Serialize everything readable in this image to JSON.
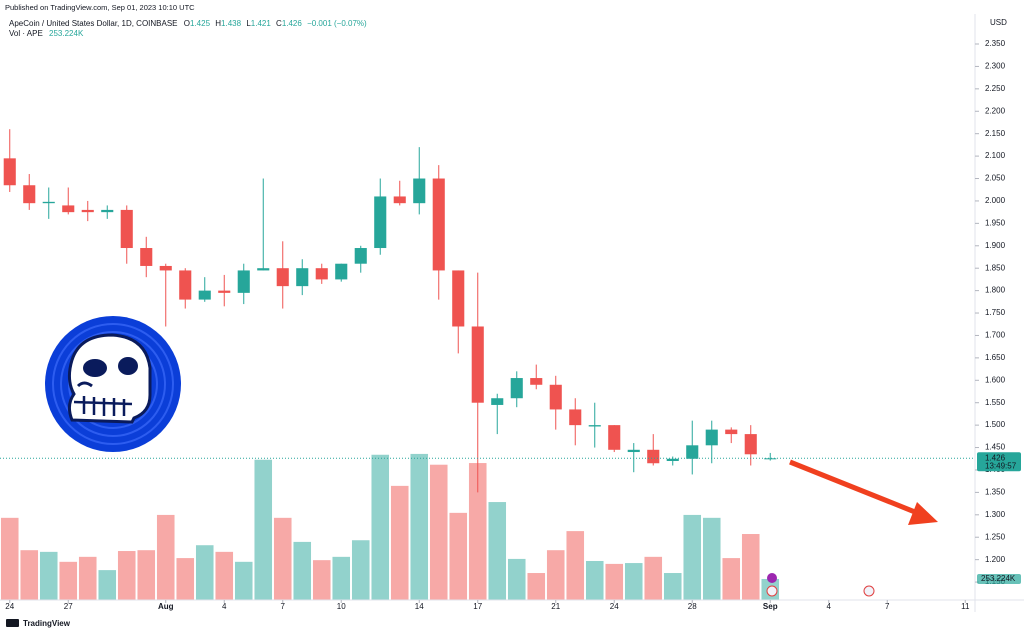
{
  "header": {
    "published": "Published on TradingView.com, Sep 01, 2023 10:10 UTC"
  },
  "chart_data": {
    "type": "candlestick",
    "title": "ApeCoin / United States Dollar, 1D, COINBASE",
    "ohlc_prefixes": [
      "O",
      "H",
      "L",
      "C"
    ],
    "change_label": "−0.001 (−0.07%)",
    "volume_title": "Vol · APE",
    "currency_label": "USD",
    "countdown": "13:49:57",
    "up_color": "#26a69a",
    "down_color": "#ef5350",
    "xlim": [
      -0.5,
      49.5
    ],
    "xticks": [
      {
        "value": 0,
        "label": "24"
      },
      {
        "value": 3,
        "label": "27"
      },
      {
        "value": 8,
        "label": "Aug"
      },
      {
        "value": 11,
        "label": "4"
      },
      {
        "value": 14,
        "label": "7"
      },
      {
        "value": 17,
        "label": "10"
      },
      {
        "value": 21,
        "label": "14"
      },
      {
        "value": 24,
        "label": "17"
      },
      {
        "value": 28,
        "label": "21"
      },
      {
        "value": 31,
        "label": "24"
      },
      {
        "value": 35,
        "label": "28"
      },
      {
        "value": 39,
        "label": "Sep"
      },
      {
        "value": 42,
        "label": "4"
      },
      {
        "value": 45,
        "label": "7"
      },
      {
        "value": 49,
        "label": "11"
      }
    ],
    "ylim": [
      1.11,
      2.408
    ],
    "yticks": [
      {
        "value": 1.15,
        "label": "1.150"
      },
      {
        "value": 1.2,
        "label": "1.200"
      },
      {
        "value": 1.25,
        "label": "1.250"
      },
      {
        "value": 1.3,
        "label": "1.300"
      },
      {
        "value": 1.35,
        "label": "1.350"
      },
      {
        "value": 1.4,
        "label": "1.400"
      },
      {
        "value": 1.45,
        "label": "1.450"
      },
      {
        "value": 1.5,
        "label": "1.500"
      },
      {
        "value": 1.55,
        "label": "1.550"
      },
      {
        "value": 1.6,
        "label": "1.600"
      },
      {
        "value": 1.65,
        "label": "1.650"
      },
      {
        "value": 1.7,
        "label": "1.700"
      },
      {
        "value": 1.75,
        "label": "1.750"
      },
      {
        "value": 1.8,
        "label": "1.800"
      },
      {
        "value": 1.85,
        "label": "1.850"
      },
      {
        "value": 1.9,
        "label": "1.900"
      },
      {
        "value": 1.95,
        "label": "1.950"
      },
      {
        "value": 2.0,
        "label": "2.000"
      },
      {
        "value": 2.05,
        "label": "2.050"
      },
      {
        "value": 2.1,
        "label": "2.100"
      },
      {
        "value": 2.15,
        "label": "2.150"
      },
      {
        "value": 2.2,
        "label": "2.200"
      },
      {
        "value": 2.25,
        "label": "2.250"
      },
      {
        "value": 2.3,
        "label": "2.300"
      },
      {
        "value": 2.35,
        "label": "2.350"
      }
    ],
    "open": [
      2.095,
      2.035,
      1.995,
      1.99,
      1.98,
      1.975,
      1.98,
      1.895,
      1.855,
      1.845,
      1.78,
      1.8,
      1.795,
      1.845,
      1.85,
      1.81,
      1.85,
      1.825,
      1.86,
      1.895,
      2.01,
      1.995,
      2.05,
      1.845,
      1.72,
      1.545,
      1.56,
      1.605,
      1.59,
      1.535,
      1.497,
      1.5,
      1.44,
      1.445,
      1.42,
      1.425,
      1.455,
      1.49,
      1.48,
      1.425
    ],
    "high": [
      2.16,
      2.06,
      2.03,
      2.03,
      2.0,
      1.99,
      1.99,
      1.92,
      1.86,
      1.85,
      1.83,
      1.835,
      1.86,
      2.05,
      1.91,
      1.87,
      1.86,
      1.86,
      1.9,
      2.05,
      2.045,
      2.12,
      2.08,
      1.845,
      1.84,
      1.57,
      1.62,
      1.635,
      1.61,
      1.56,
      1.55,
      1.5,
      1.46,
      1.48,
      1.43,
      1.51,
      1.51,
      1.495,
      1.5,
      1.438
    ],
    "low": [
      2.02,
      1.98,
      1.96,
      1.97,
      1.955,
      1.96,
      1.86,
      1.83,
      1.72,
      1.76,
      1.775,
      1.765,
      1.77,
      1.845,
      1.76,
      1.79,
      1.815,
      1.82,
      1.84,
      1.88,
      1.99,
      1.97,
      1.78,
      1.66,
      1.35,
      1.48,
      1.54,
      1.58,
      1.49,
      1.455,
      1.45,
      1.44,
      1.395,
      1.41,
      1.41,
      1.39,
      1.415,
      1.46,
      1.41,
      1.421
    ],
    "close": [
      2.035,
      1.995,
      1.998,
      1.975,
      1.975,
      1.98,
      1.895,
      1.855,
      1.845,
      1.78,
      1.8,
      1.795,
      1.845,
      1.85,
      1.81,
      1.85,
      1.825,
      1.86,
      1.895,
      2.01,
      1.995,
      2.05,
      1.845,
      1.72,
      1.55,
      1.56,
      1.605,
      1.59,
      1.535,
      1.5,
      1.5,
      1.445,
      1.445,
      1.415,
      1.425,
      1.455,
      1.49,
      1.48,
      1.435,
      1.426
    ],
    "volume_ylim": [
      0,
      2000000
    ],
    "volume": {
      "values": [
        990000,
        600000,
        580000,
        460000,
        520000,
        360000,
        590000,
        600000,
        1025000,
        505000,
        660000,
        580000,
        460000,
        1690000,
        990000,
        700000,
        480000,
        520000,
        720000,
        1750000,
        1375000,
        1760000,
        1630000,
        1050000,
        1650000,
        1180000,
        495000,
        325000,
        600000,
        830000,
        470000,
        435000,
        445000,
        520000,
        325000,
        1025000,
        990000,
        505000,
        795000,
        253224
      ],
      "value_labels": [
        null,
        null,
        null,
        null,
        null,
        null,
        null,
        null,
        null,
        null,
        null,
        null,
        null,
        null,
        null,
        null,
        null,
        null,
        null,
        null,
        null,
        null,
        null,
        null,
        null,
        null,
        null,
        null,
        null,
        null,
        null,
        null,
        null,
        null,
        null,
        null,
        null,
        null,
        null,
        "253.224K"
      ]
    }
  },
  "footer": {
    "brand": "TradingView"
  }
}
